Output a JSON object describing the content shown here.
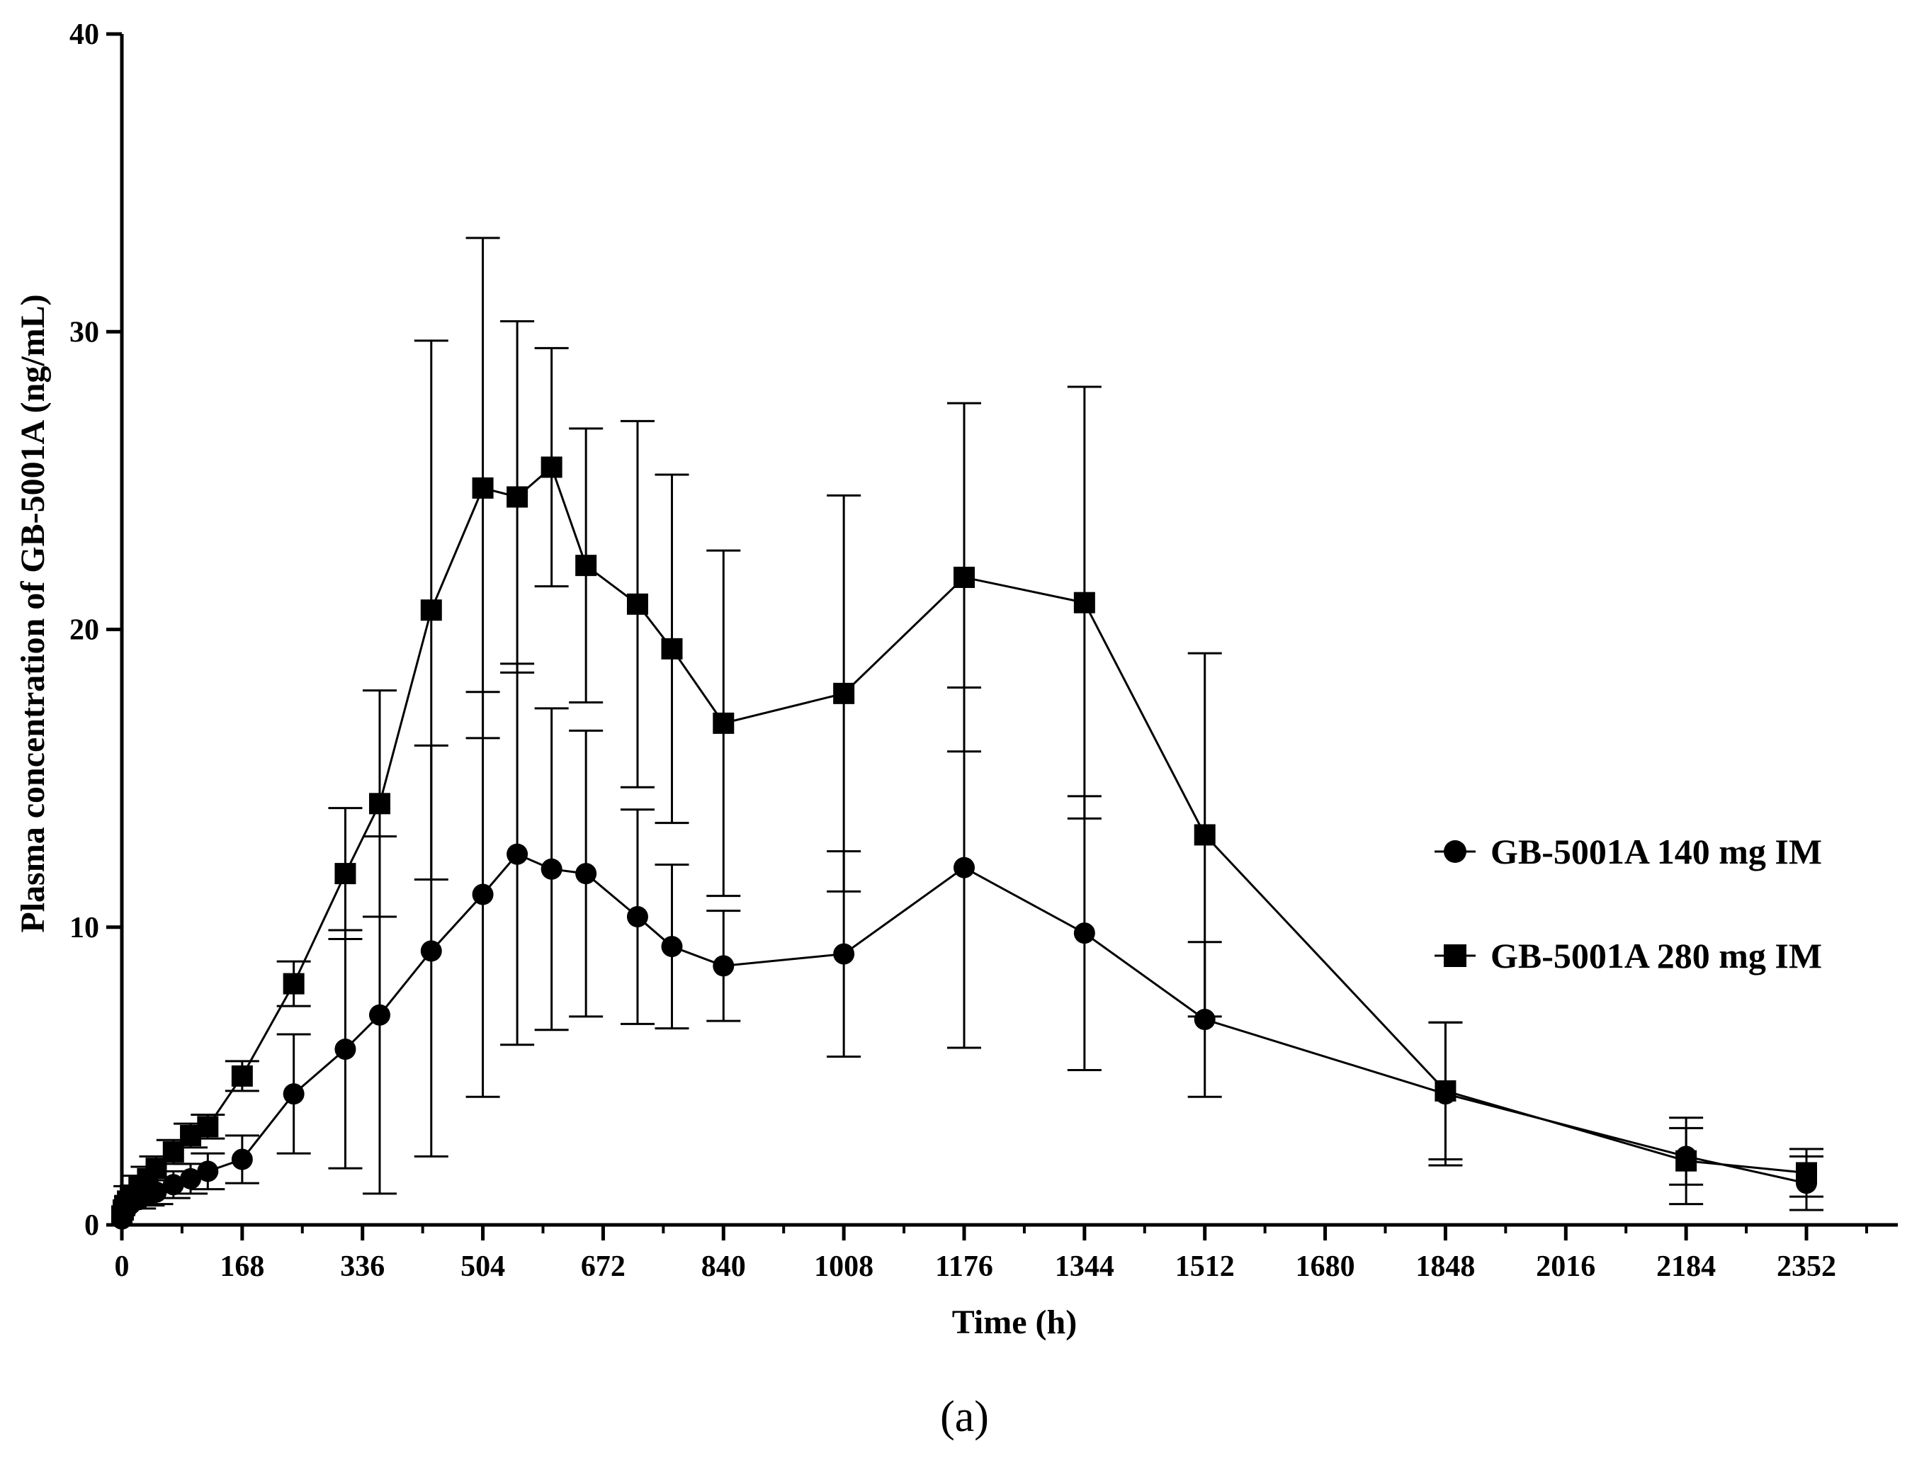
{
  "chart_data": {
    "type": "line",
    "title": "",
    "xlabel": "Time (h)",
    "ylabel": "Plasma concentration of GB-5001A (ng/mL)",
    "xlim": [
      0,
      2480
    ],
    "ylim": [
      0,
      40
    ],
    "xticks": [
      0,
      168,
      336,
      504,
      672,
      840,
      1008,
      1176,
      1344,
      1512,
      1680,
      1848,
      2016,
      2184,
      2352
    ],
    "yticks": [
      0,
      10,
      20,
      30,
      40
    ],
    "legend_position": "right",
    "grid": false,
    "series": [
      {
        "name": "GB-5001A 140 mg IM",
        "marker": "circle",
        "x": [
          0,
          2,
          4,
          8,
          12,
          24,
          36,
          48,
          72,
          96,
          120,
          168,
          240,
          312,
          360,
          432,
          504,
          552,
          600,
          648,
          720,
          768,
          840,
          1008,
          1176,
          1344,
          1512,
          1848,
          2184,
          2352
        ],
        "y": [
          0.2,
          0.4,
          0.5,
          0.6,
          0.7,
          0.85,
          1.0,
          1.1,
          1.35,
          1.55,
          1.8,
          2.2,
          4.4,
          5.9,
          7.05,
          9.2,
          11.1,
          12.45,
          11.95,
          11.8,
          10.35,
          9.35,
          8.7,
          9.1,
          12.0,
          9.8,
          6.9,
          4.4,
          2.3,
          1.4
        ],
        "err": [
          0.1,
          0.15,
          0.2,
          0.25,
          0.25,
          0.3,
          0.35,
          0.4,
          0.45,
          0.5,
          0.6,
          0.8,
          2.0,
          4.0,
          6.0,
          6.9,
          6.8,
          6.4,
          5.4,
          4.8,
          3.6,
          2.75,
          1.85,
          3.45,
          6.05,
          4.6,
          2.6,
          2.4,
          0.95,
          0.9
        ]
      },
      {
        "name": "GB-5001A 280 mg IM",
        "marker": "square",
        "x": [
          0,
          2,
          4,
          8,
          12,
          24,
          36,
          48,
          72,
          96,
          120,
          168,
          240,
          312,
          360,
          432,
          504,
          552,
          600,
          648,
          720,
          768,
          840,
          1008,
          1176,
          1344,
          1512,
          1848,
          2184,
          2352
        ],
        "y": [
          0.3,
          0.5,
          0.65,
          0.8,
          1.0,
          1.3,
          1.55,
          1.9,
          2.45,
          3.0,
          3.3,
          5.0,
          8.1,
          11.8,
          14.15,
          20.65,
          24.75,
          24.45,
          25.45,
          22.15,
          20.85,
          19.35,
          16.85,
          17.85,
          21.75,
          20.9,
          13.1,
          4.5,
          2.15,
          1.75
        ],
        "err": [
          0.1,
          0.15,
          0.2,
          0.25,
          0.3,
          0.35,
          0.4,
          0.4,
          0.4,
          0.4,
          0.4,
          0.5,
          0.75,
          2.2,
          3.8,
          9.05,
          8.4,
          5.9,
          4.0,
          4.6,
          6.15,
          5.85,
          5.8,
          6.65,
          5.85,
          7.25,
          6.1,
          2.3,
          1.45,
          0.8
        ]
      }
    ]
  },
  "caption": "(a)"
}
